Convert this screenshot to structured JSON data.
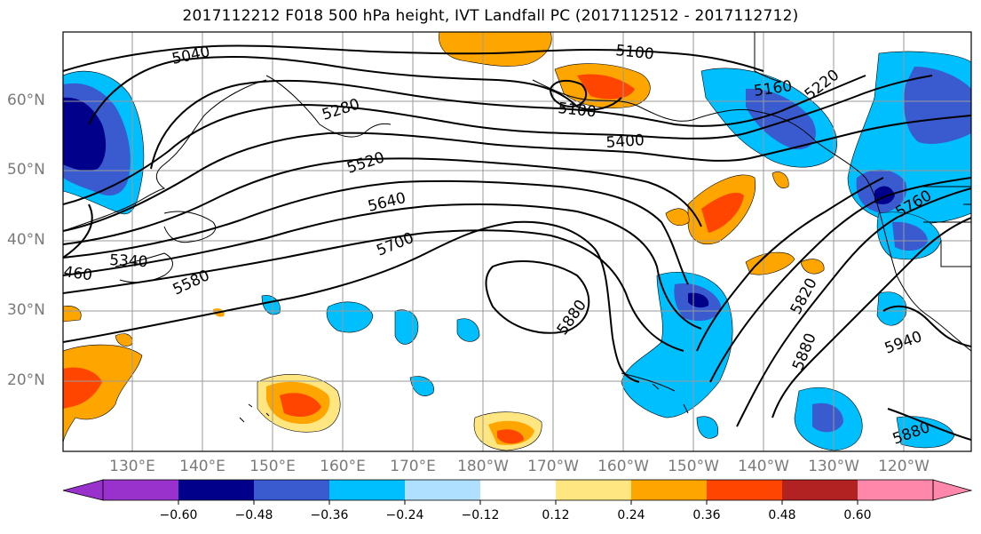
{
  "title": "2017112212 F018 500 hPa height, IVT Landfall PC (2017112512 - 2017112712)",
  "latitude_labels": [
    "60°N",
    "50°N",
    "40°N",
    "30°N",
    "20°N"
  ],
  "longitude_labels": [
    "130°E",
    "140°E",
    "150°E",
    "160°E",
    "170°E",
    "180°W",
    "170°W",
    "160°W",
    "150°W",
    "140°W",
    "130°W",
    "120°W"
  ],
  "contour_labels": [
    "5040",
    "5100",
    "5100",
    "5160",
    "5220",
    "5280",
    "5400",
    "5520",
    "5640",
    "5700",
    "5760",
    "5820",
    "5880",
    "5880",
    "5880",
    "5940",
    "5340",
    "5580",
    "460"
  ],
  "colorbar": {
    "tick_labels": [
      "−0.60",
      "−0.48",
      "−0.36",
      "−0.24",
      "−0.12",
      "0.12",
      "0.24",
      "0.36",
      "0.48",
      "0.60"
    ],
    "colors": [
      "#9932cc",
      "#00008b",
      "#3a5bd0",
      "#00bfff",
      "#b0e0ff",
      "#ffffff",
      "#ffe680",
      "#ffa500",
      "#ff4500",
      "#b22222",
      "#ff88aa"
    ]
  },
  "shading_colors": {
    "neg_strong": "#00008b",
    "neg_mid": "#3a5bd0",
    "neg_low": "#00bfff",
    "neg_faint": "#b0e0ff",
    "pos_faint": "#ffe680",
    "pos_low": "#ffa500",
    "pos_mid": "#ff4500"
  }
}
